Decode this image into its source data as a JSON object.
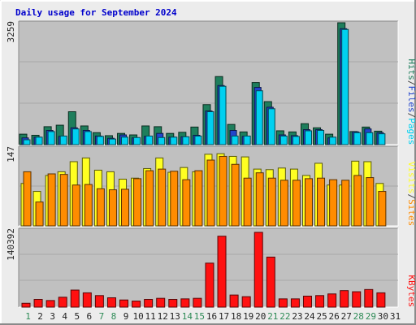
{
  "colors": {
    "background": "#ececec",
    "panel": "#c0c0c0",
    "grid": "#a8a8a8",
    "title": "#0000cc",
    "hits": "#1e7e5c",
    "files": "#2244cc",
    "pages": "#00d0f0",
    "visits": "#ffff22",
    "sites": "#ff8c00",
    "kbytes": "#ff1010",
    "weekday_label": "#222222",
    "weekend_label": "#2e8b57",
    "separator": "#777777"
  },
  "chart_data": [
    {
      "type": "bar",
      "panel": "hits-files-pages",
      "title": "Daily usage for September 2024",
      "ylabel": "3259",
      "ymax": 3259,
      "grid": true,
      "categories": [
        "1",
        "2",
        "3",
        "4",
        "5",
        "6",
        "7",
        "8",
        "9",
        "10",
        "11",
        "12",
        "13",
        "14",
        "15",
        "16",
        "17",
        "18",
        "19",
        "20",
        "21",
        "22",
        "23",
        "24",
        "25",
        "26",
        "27",
        "28",
        "29",
        "30",
        "31"
      ],
      "weekend_days": [
        "1",
        "7",
        "8",
        "14",
        "15",
        "21",
        "22",
        "28",
        "29"
      ],
      "legend": {
        "parts": [
          "Pages",
          "Files",
          "Hits"
        ],
        "separator": "/",
        "placement": "right-vertical"
      },
      "series": [
        {
          "name": "Hits",
          "color_key": "hits",
          "values": [
            280,
            250,
            480,
            520,
            880,
            500,
            320,
            240,
            300,
            260,
            500,
            480,
            300,
            330,
            470,
            1070,
            1820,
            540,
            340,
            1660,
            1150,
            370,
            340,
            560,
            450,
            280,
            3259,
            350,
            470,
            360,
            0
          ]
        },
        {
          "name": "Files",
          "color_key": "files",
          "values": [
            180,
            200,
            380,
            220,
            450,
            380,
            230,
            170,
            260,
            180,
            220,
            300,
            200,
            210,
            250,
            900,
            1580,
            380,
            220,
            1530,
            1000,
            260,
            240,
            400,
            400,
            180,
            3100,
            340,
            420,
            320,
            0
          ]
        },
        {
          "name": "Pages",
          "color_key": "pages",
          "values": [
            130,
            200,
            350,
            230,
            420,
            350,
            220,
            150,
            200,
            190,
            230,
            190,
            200,
            210,
            230,
            880,
            1560,
            230,
            230,
            1440,
            960,
            230,
            220,
            370,
            380,
            200,
            3080,
            320,
            320,
            290,
            0
          ]
        }
      ]
    },
    {
      "type": "bar",
      "panel": "visits-sites",
      "ylabel": "147",
      "ymax": 147,
      "categories": [
        "1",
        "2",
        "3",
        "4",
        "5",
        "6",
        "7",
        "8",
        "9",
        "10",
        "11",
        "12",
        "13",
        "14",
        "15",
        "16",
        "17",
        "18",
        "19",
        "20",
        "21",
        "22",
        "23",
        "24",
        "25",
        "26",
        "27",
        "28",
        "29",
        "30",
        "31"
      ],
      "legend": {
        "parts": [
          "Sites",
          "Visits"
        ],
        "separator": "/",
        "placement": "right-vertical"
      },
      "series": [
        {
          "name": "Visits",
          "color_key": "visits",
          "values": [
            80,
            65,
            95,
            102,
            121,
            128,
            105,
            102,
            88,
            90,
            108,
            128,
            101,
            110,
            102,
            135,
            136,
            131,
            130,
            107,
            106,
            109,
            107,
            95,
            118,
            77,
            77,
            122,
            121,
            80,
            0
          ]
        },
        {
          "name": "Sites",
          "color_key": "sites",
          "values": [
            102,
            45,
            98,
            97,
            77,
            78,
            70,
            68,
            69,
            89,
            104,
            107,
            103,
            87,
            104,
            124,
            131,
            116,
            90,
            100,
            90,
            86,
            86,
            89,
            90,
            87,
            86,
            95,
            91,
            65,
            0
          ]
        }
      ]
    },
    {
      "type": "bar",
      "panel": "kbytes",
      "ylabel": "140392",
      "ymax": 140392,
      "categories": [
        "1",
        "2",
        "3",
        "4",
        "5",
        "6",
        "7",
        "8",
        "9",
        "10",
        "11",
        "12",
        "13",
        "14",
        "15",
        "16",
        "17",
        "18",
        "19",
        "20",
        "21",
        "22",
        "23",
        "24",
        "25",
        "26",
        "27",
        "28",
        "29",
        "30",
        "31"
      ],
      "legend": {
        "parts": [
          "KBytes"
        ],
        "separator": "/",
        "placement": "right-vertical"
      },
      "series": [
        {
          "name": "KBytes",
          "color_key": "kbytes",
          "values": [
            7000,
            14000,
            12000,
            18000,
            31000,
            26000,
            21000,
            17000,
            13000,
            11000,
            14000,
            16000,
            14000,
            15000,
            16000,
            80000,
            129000,
            22000,
            19000,
            136000,
            91000,
            15000,
            15000,
            20000,
            21000,
            24000,
            30000,
            28000,
            32000,
            26000,
            0
          ]
        }
      ]
    }
  ]
}
